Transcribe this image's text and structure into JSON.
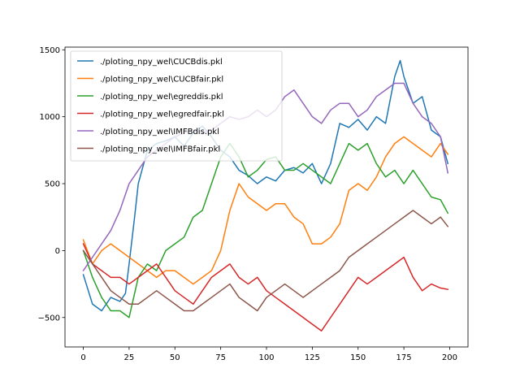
{
  "chart_data": {
    "type": "line",
    "title": "",
    "xlabel": "",
    "ylabel": "",
    "xlim": [
      -10,
      210
    ],
    "ylim": [
      -720,
      1520
    ],
    "xticks": [
      0,
      25,
      50,
      75,
      100,
      125,
      150,
      175,
      200
    ],
    "yticks": [
      -500,
      0,
      500,
      1000,
      1500
    ],
    "grid": false,
    "legend": "upper-left",
    "series": [
      {
        "name": "./ploting_npy_wel\\CUCBdis.pkl",
        "color": "#1f77b4",
        "x": [
          0,
          5,
          10,
          15,
          20,
          23,
          25,
          28,
          30,
          35,
          40,
          45,
          50,
          55,
          60,
          65,
          70,
          75,
          80,
          85,
          90,
          95,
          100,
          105,
          110,
          115,
          120,
          125,
          130,
          135,
          140,
          145,
          150,
          155,
          160,
          165,
          170,
          173,
          175,
          180,
          185,
          190,
          195,
          199
        ],
        "y": [
          -180,
          -400,
          -450,
          -350,
          -380,
          -320,
          -100,
          250,
          500,
          750,
          800,
          820,
          850,
          780,
          880,
          930,
          850,
          750,
          700,
          600,
          560,
          500,
          550,
          520,
          600,
          620,
          580,
          650,
          500,
          650,
          950,
          920,
          980,
          900,
          1000,
          950,
          1300,
          1420,
          1300,
          1100,
          1150,
          900,
          850,
          650
        ]
      },
      {
        "name": "./ploting_npy_wel\\CUCBfair.pkl",
        "color": "#ff7f0e",
        "x": [
          0,
          5,
          10,
          15,
          20,
          25,
          30,
          35,
          40,
          45,
          50,
          55,
          60,
          65,
          70,
          75,
          80,
          85,
          90,
          95,
          100,
          105,
          110,
          115,
          120,
          125,
          130,
          135,
          140,
          145,
          150,
          155,
          160,
          165,
          170,
          175,
          180,
          185,
          190,
          195,
          199
        ],
        "y": [
          80,
          -100,
          0,
          50,
          0,
          -50,
          -100,
          -150,
          -200,
          -150,
          -150,
          -200,
          -250,
          -200,
          -150,
          0,
          300,
          500,
          400,
          350,
          300,
          350,
          350,
          250,
          200,
          50,
          50,
          100,
          200,
          450,
          500,
          450,
          550,
          700,
          800,
          850,
          800,
          750,
          700,
          800,
          720
        ]
      },
      {
        "name": "./ploting_npy_wel\\egreddis.pkl",
        "color": "#2ca02c",
        "x": [
          0,
          5,
          10,
          15,
          20,
          25,
          30,
          35,
          40,
          45,
          50,
          55,
          60,
          65,
          70,
          75,
          80,
          85,
          90,
          95,
          100,
          105,
          110,
          115,
          120,
          125,
          130,
          135,
          140,
          145,
          150,
          155,
          160,
          165,
          170,
          175,
          180,
          185,
          190,
          195,
          199
        ],
        "y": [
          0,
          -200,
          -350,
          -450,
          -450,
          -500,
          -200,
          -100,
          -150,
          0,
          50,
          100,
          250,
          300,
          500,
          700,
          800,
          700,
          550,
          600,
          680,
          700,
          600,
          600,
          650,
          600,
          550,
          500,
          650,
          800,
          750,
          800,
          650,
          550,
          600,
          500,
          600,
          500,
          400,
          380,
          280
        ]
      },
      {
        "name": "./ploting_npy_wel\\egredfair.pkl",
        "color": "#d62728",
        "x": [
          0,
          5,
          10,
          15,
          20,
          25,
          30,
          35,
          40,
          45,
          50,
          55,
          60,
          65,
          70,
          75,
          80,
          85,
          90,
          95,
          100,
          105,
          110,
          115,
          120,
          125,
          130,
          135,
          140,
          145,
          150,
          155,
          160,
          165,
          170,
          175,
          180,
          185,
          190,
          195,
          199
        ],
        "y": [
          50,
          -100,
          -150,
          -200,
          -200,
          -250,
          -200,
          -150,
          -100,
          -200,
          -300,
          -350,
          -400,
          -300,
          -200,
          -150,
          -100,
          -200,
          -250,
          -200,
          -300,
          -350,
          -400,
          -450,
          -500,
          -550,
          -600,
          -500,
          -400,
          -300,
          -200,
          -250,
          -200,
          -150,
          -100,
          -50,
          -200,
          -300,
          -250,
          -280,
          -290
        ]
      },
      {
        "name": "./ploting_npy_wel\\IMFBdis.pkl",
        "color": "#9467bd",
        "x": [
          0,
          5,
          10,
          15,
          20,
          25,
          30,
          35,
          40,
          45,
          50,
          55,
          60,
          65,
          70,
          75,
          80,
          85,
          90,
          95,
          100,
          105,
          110,
          115,
          120,
          125,
          130,
          135,
          140,
          145,
          150,
          155,
          160,
          165,
          170,
          175,
          180,
          185,
          190,
          195,
          199
        ],
        "y": [
          -150,
          -50,
          50,
          150,
          300,
          500,
          600,
          700,
          750,
          800,
          850,
          880,
          900,
          880,
          900,
          950,
          1000,
          980,
          1000,
          1050,
          1000,
          1050,
          1150,
          1200,
          1100,
          1000,
          950,
          1050,
          1100,
          1100,
          1000,
          1050,
          1150,
          1200,
          1250,
          1250,
          1100,
          1000,
          950,
          850,
          580
        ]
      },
      {
        "name": "./ploting_npy_wel\\IMFBfair.pkl",
        "color": "#8c564b",
        "x": [
          0,
          5,
          10,
          15,
          20,
          25,
          30,
          35,
          40,
          45,
          50,
          55,
          60,
          65,
          70,
          75,
          80,
          85,
          90,
          95,
          100,
          105,
          110,
          115,
          120,
          125,
          130,
          135,
          140,
          145,
          150,
          155,
          160,
          165,
          170,
          175,
          180,
          185,
          190,
          195,
          199
        ],
        "y": [
          0,
          -100,
          -200,
          -300,
          -350,
          -400,
          -400,
          -350,
          -300,
          -350,
          -400,
          -450,
          -450,
          -400,
          -350,
          -300,
          -250,
          -350,
          -400,
          -450,
          -350,
          -300,
          -250,
          -300,
          -350,
          -300,
          -250,
          -200,
          -150,
          -50,
          0,
          50,
          100,
          150,
          200,
          250,
          300,
          250,
          200,
          250,
          180
        ]
      }
    ]
  }
}
